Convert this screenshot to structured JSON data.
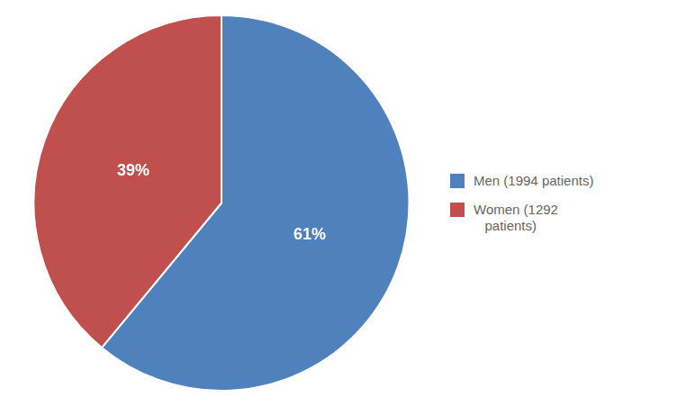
{
  "chart_data": {
    "type": "pie",
    "categories": [
      "Men (1994 patients)",
      "Women (1292\n   patients)"
    ],
    "values": [
      61,
      39
    ],
    "value_labels": [
      "61%",
      "39%"
    ],
    "colors": [
      "#4F81BD",
      "#C0504D"
    ],
    "data_labels": true,
    "legend": "right"
  }
}
